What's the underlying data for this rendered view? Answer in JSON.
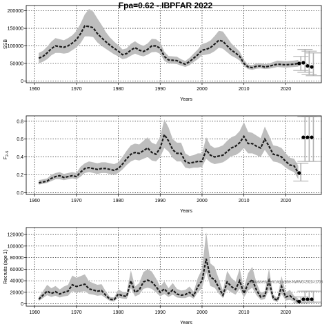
{
  "chart_data": [
    {
      "type": "line",
      "title": "Fpa=0.62 - IBPFAR 2022",
      "xlabel": "Years",
      "ylabel": "SSB",
      "xlim": [
        1958,
        2028.5
      ],
      "ylim": [
        -5000,
        215000
      ],
      "x_ticks": [
        1960,
        1970,
        1980,
        1990,
        2000,
        2010,
        2020
      ],
      "y_ticks": [
        0,
        50000,
        100000,
        150000,
        200000
      ],
      "y_tick_labels": [
        "0",
        "50000",
        "100000",
        "150000",
        "200000"
      ],
      "grid": true,
      "series": [
        {
          "x": [
            1961,
            1962,
            1963,
            1964,
            1965,
            1966,
            1967,
            1968,
            1969,
            1970,
            1971,
            1972,
            1973,
            1974,
            1975,
            1976,
            1977,
            1978,
            1979,
            1980,
            1981,
            1982,
            1983,
            1984,
            1985,
            1986,
            1987,
            1988,
            1989,
            1990,
            1991,
            1992,
            1993,
            1994,
            1995,
            1996,
            1997,
            1998,
            1999,
            2000,
            2001,
            2002,
            2003,
            2004,
            2005,
            2006,
            2007,
            2008,
            2009,
            2010,
            2011,
            2012,
            2013,
            2014,
            2015,
            2016,
            2017,
            2018,
            2019,
            2020,
            2021,
            2022,
            2023
          ],
          "values": [
            65000,
            70000,
            80000,
            92000,
            100000,
            98000,
            96000,
            100000,
            108000,
            118000,
            135000,
            157000,
            155000,
            152000,
            135000,
            123000,
            112000,
            102000,
            93000,
            85000,
            75000,
            78000,
            88000,
            95000,
            88000,
            84000,
            90000,
            100000,
            100000,
            93000,
            70000,
            60000,
            59000,
            58000,
            52000,
            48000,
            55000,
            65000,
            75000,
            88000,
            90000,
            95000,
            105000,
            116000,
            113000,
            100000,
            88000,
            80000,
            70000,
            50000,
            40000,
            38000,
            42000,
            43000,
            40000,
            42000,
            45000,
            48000,
            47000,
            46000,
            47000,
            48000,
            50000
          ],
          "lower": [
            50000,
            55000,
            62000,
            73000,
            80000,
            80000,
            78000,
            80000,
            88000,
            96000,
            108000,
            127000,
            127000,
            125000,
            110000,
            100000,
            92000,
            84000,
            76000,
            70000,
            62000,
            65000,
            72000,
            78000,
            73000,
            70000,
            75000,
            82000,
            83000,
            77000,
            57000,
            50000,
            49000,
            48000,
            44000,
            40000,
            45000,
            54000,
            62000,
            73000,
            75000,
            78000,
            85000,
            95000,
            92000,
            82000,
            72000,
            66000,
            58000,
            42000,
            34000,
            32000,
            35000,
            36000,
            34000,
            35000,
            37000,
            40000,
            39000,
            38000,
            39000,
            40000,
            41000
          ],
          "upper": [
            80000,
            86000,
            98000,
            112000,
            122000,
            119000,
            116000,
            122000,
            130000,
            143000,
            164000,
            190000,
            205000,
            198000,
            178000,
            160000,
            140000,
            124000,
            112000,
            102000,
            90000,
            93000,
            106000,
            113000,
            105000,
            100000,
            107000,
            120000,
            119000,
            110000,
            84000,
            71000,
            70000,
            69000,
            62000,
            57000,
            66000,
            78000,
            90000,
            105000,
            109000,
            115000,
            128000,
            143000,
            141000,
            124000,
            107000,
            96000,
            84000,
            60000,
            47000,
            45000,
            50000,
            51000,
            48000,
            50000,
            54000,
            58000,
            57000,
            56000,
            57000,
            58000,
            60000
          ]
        }
      ],
      "projection_points": [
        {
          "x": 2023.2,
          "value": 50000
        },
        {
          "x": 2024.2,
          "value": 52000
        },
        {
          "x": 2025.2,
          "value": 43000
        },
        {
          "x": 2026.2,
          "value": 40000
        }
      ],
      "projection_intervals": [
        {
          "x": 2023.6,
          "low": 30000,
          "high": 70000
        },
        {
          "x": 2024.6,
          "low": 25000,
          "high": 90000
        },
        {
          "x": 2025.6,
          "low": 18000,
          "high": 85000
        },
        {
          "x": 2026.6,
          "low": 15000,
          "high": 80000
        }
      ]
    },
    {
      "type": "line",
      "title": "",
      "xlabel": "Years",
      "ylabel": "F",
      "ylabel_subscript": "2–5",
      "xlim": [
        1958,
        2028.5
      ],
      "ylim": [
        -0.02,
        0.86
      ],
      "x_ticks": [
        1960,
        1970,
        1980,
        1990,
        2000,
        2010,
        2020
      ],
      "y_ticks": [
        0,
        0.2,
        0.4,
        0.6,
        0.8
      ],
      "y_tick_labels": [
        "0.0",
        "0.2",
        "0.4",
        "0.6",
        "0.8"
      ],
      "grid": true,
      "series": [
        {
          "x": [
            1961,
            1962,
            1963,
            1964,
            1965,
            1966,
            1967,
            1968,
            1969,
            1970,
            1971,
            1972,
            1973,
            1974,
            1975,
            1976,
            1977,
            1978,
            1979,
            1980,
            1981,
            1982,
            1983,
            1984,
            1985,
            1986,
            1987,
            1988,
            1989,
            1990,
            1991,
            1992,
            1993,
            1994,
            1995,
            1996,
            1997,
            1998,
            1999,
            2000,
            2001,
            2002,
            2003,
            2004,
            2005,
            2006,
            2007,
            2008,
            2009,
            2010,
            2011,
            2012,
            2013,
            2014,
            2015,
            2016,
            2017,
            2018,
            2019,
            2020,
            2021,
            2022,
            2023
          ],
          "values": [
            0.11,
            0.12,
            0.13,
            0.16,
            0.18,
            0.19,
            0.17,
            0.18,
            0.19,
            0.18,
            0.23,
            0.27,
            0.28,
            0.27,
            0.26,
            0.27,
            0.27,
            0.26,
            0.25,
            0.27,
            0.32,
            0.38,
            0.43,
            0.45,
            0.44,
            0.47,
            0.5,
            0.45,
            0.43,
            0.5,
            0.65,
            0.58,
            0.48,
            0.44,
            0.44,
            0.35,
            0.33,
            0.34,
            0.35,
            0.35,
            0.48,
            0.42,
            0.4,
            0.41,
            0.42,
            0.46,
            0.5,
            0.52,
            0.56,
            0.63,
            0.55,
            0.55,
            0.52,
            0.5,
            0.6,
            0.52,
            0.43,
            0.42,
            0.4,
            0.35,
            0.31,
            0.3,
            0.22
          ],
          "lower": [
            0.09,
            0.1,
            0.11,
            0.13,
            0.15,
            0.15,
            0.14,
            0.15,
            0.16,
            0.15,
            0.18,
            0.22,
            0.23,
            0.22,
            0.21,
            0.22,
            0.22,
            0.21,
            0.2,
            0.22,
            0.26,
            0.31,
            0.35,
            0.37,
            0.36,
            0.38,
            0.4,
            0.36,
            0.35,
            0.4,
            0.5,
            0.46,
            0.39,
            0.35,
            0.35,
            0.28,
            0.27,
            0.28,
            0.28,
            0.29,
            0.38,
            0.34,
            0.32,
            0.33,
            0.34,
            0.37,
            0.41,
            0.42,
            0.45,
            0.5,
            0.44,
            0.44,
            0.42,
            0.4,
            0.48,
            0.41,
            0.35,
            0.34,
            0.32,
            0.28,
            0.25,
            0.23,
            0.15
          ],
          "upper": [
            0.14,
            0.15,
            0.16,
            0.2,
            0.22,
            0.23,
            0.21,
            0.22,
            0.23,
            0.22,
            0.29,
            0.33,
            0.35,
            0.34,
            0.33,
            0.34,
            0.34,
            0.33,
            0.32,
            0.34,
            0.4,
            0.47,
            0.53,
            0.55,
            0.54,
            0.58,
            0.62,
            0.56,
            0.54,
            0.63,
            0.82,
            0.73,
            0.6,
            0.56,
            0.56,
            0.44,
            0.41,
            0.42,
            0.44,
            0.44,
            0.62,
            0.53,
            0.5,
            0.51,
            0.53,
            0.58,
            0.62,
            0.64,
            0.69,
            0.79,
            0.68,
            0.67,
            0.64,
            0.61,
            0.74,
            0.64,
            0.53,
            0.52,
            0.5,
            0.44,
            0.39,
            0.38,
            0.3
          ]
        }
      ],
      "projection_points": [
        {
          "x": 2023.2,
          "value": 0.22
        },
        {
          "x": 2024.2,
          "value": 0.62
        },
        {
          "x": 2025.2,
          "value": 0.62
        },
        {
          "x": 2026.2,
          "value": 0.62
        }
      ],
      "projection_intervals": [
        {
          "x": 2023.6,
          "low": 0.13,
          "high": 0.33
        },
        {
          "x": 2024.6,
          "low": 0.35,
          "high": 0.85
        },
        {
          "x": 2025.6,
          "low": 0.35,
          "high": 0.85
        },
        {
          "x": 2026.6,
          "low": 0.35,
          "high": 0.85
        }
      ]
    },
    {
      "type": "line",
      "title": "",
      "xlabel": "Years",
      "ylabel": "Recruits (age 1)",
      "xlim": [
        1958,
        2028.5
      ],
      "ylim": [
        -4000,
        132000
      ],
      "x_ticks": [
        1960,
        1970,
        1980,
        1990,
        2000,
        2010,
        2020
      ],
      "y_ticks": [
        0,
        20000,
        40000,
        60000,
        80000,
        100000,
        120000
      ],
      "y_tick_labels": [
        "0",
        "20000",
        "40000",
        "60000",
        "80000",
        "100000",
        "120000"
      ],
      "grid": true,
      "annotation": "stockassessment.org nolthe-NWWG-2023-r1703",
      "series": [
        {
          "x": [
            1961,
            1962,
            1963,
            1964,
            1965,
            1966,
            1967,
            1968,
            1969,
            1970,
            1971,
            1972,
            1973,
            1974,
            1975,
            1976,
            1977,
            1978,
            1979,
            1980,
            1981,
            1982,
            1983,
            1984,
            1985,
            1986,
            1987,
            1988,
            1989,
            1990,
            1991,
            1992,
            1993,
            1994,
            1995,
            1996,
            1997,
            1998,
            1999,
            2000,
            2001,
            2002,
            2003,
            2004,
            2005,
            2006,
            2007,
            2008,
            2009,
            2010,
            2011,
            2012,
            2013,
            2014,
            2015,
            2016,
            2017,
            2018,
            2019,
            2020,
            2021,
            2022,
            2023
          ],
          "values": [
            8000,
            15000,
            22000,
            18000,
            21000,
            17000,
            20000,
            22000,
            33000,
            30000,
            32000,
            34000,
            26000,
            24000,
            22000,
            23000,
            15000,
            8000,
            7000,
            17000,
            14000,
            13000,
            40000,
            20000,
            24000,
            38000,
            41000,
            38000,
            30000,
            20000,
            26000,
            18000,
            24000,
            17000,
            15000,
            16000,
            20000,
            14000,
            30000,
            40000,
            78000,
            46000,
            42000,
            28000,
            15000,
            38000,
            30000,
            25000,
            40000,
            18000,
            35000,
            42000,
            24000,
            12000,
            14000,
            40000,
            10000,
            6000,
            30000,
            12000,
            14000,
            8000,
            4000
          ],
          "lower": [
            5000,
            10000,
            15000,
            12000,
            14000,
            11000,
            13000,
            14000,
            22000,
            20000,
            21000,
            22000,
            17000,
            16000,
            14000,
            15000,
            10000,
            5000,
            4000,
            11000,
            9000,
            8000,
            27000,
            13000,
            16000,
            26000,
            28000,
            26000,
            20000,
            13000,
            17000,
            12000,
            16000,
            11000,
            10000,
            10000,
            13000,
            9000,
            20000,
            27000,
            55000,
            31000,
            28000,
            18000,
            10000,
            25000,
            20000,
            16000,
            26000,
            11000,
            23000,
            28000,
            15000,
            7000,
            8000,
            25000,
            6000,
            3000,
            17000,
            6000,
            7000,
            4000,
            1500
          ],
          "upper": [
            12000,
            22000,
            33000,
            27000,
            31000,
            25000,
            30000,
            33000,
            49000,
            45000,
            48000,
            51000,
            39000,
            36000,
            33000,
            34000,
            22000,
            12000,
            11000,
            25000,
            21000,
            20000,
            58000,
            30000,
            36000,
            55000,
            60000,
            56000,
            44000,
            30000,
            39000,
            27000,
            36000,
            26000,
            23000,
            24000,
            30000,
            21000,
            45000,
            60000,
            124000,
            70000,
            64000,
            43000,
            23000,
            57000,
            45000,
            38000,
            61000,
            28000,
            53000,
            64000,
            37000,
            19000,
            22000,
            61000,
            16000,
            10000,
            48000,
            20000,
            24000,
            14000,
            9000
          ]
        }
      ],
      "projection_points": [
        {
          "x": 2023.2,
          "value": 4000
        },
        {
          "x": 2024.2,
          "value": 8000
        },
        {
          "x": 2025.2,
          "value": 8000
        },
        {
          "x": 2026.2,
          "value": 8000
        }
      ],
      "projection_intervals": [
        {
          "x": 2023.6,
          "low": 2000,
          "high": 12000
        },
        {
          "x": 2024.6,
          "low": 3000,
          "high": 22000
        },
        {
          "x": 2025.6,
          "low": 3000,
          "high": 22000
        },
        {
          "x": 2026.6,
          "low": 3000,
          "high": 22000
        }
      ]
    }
  ],
  "colors": {
    "band": "#bebebe",
    "line": "#1a1a1a",
    "projection": "#000000",
    "interval": "#b0b0b0",
    "grid": "#000000"
  }
}
